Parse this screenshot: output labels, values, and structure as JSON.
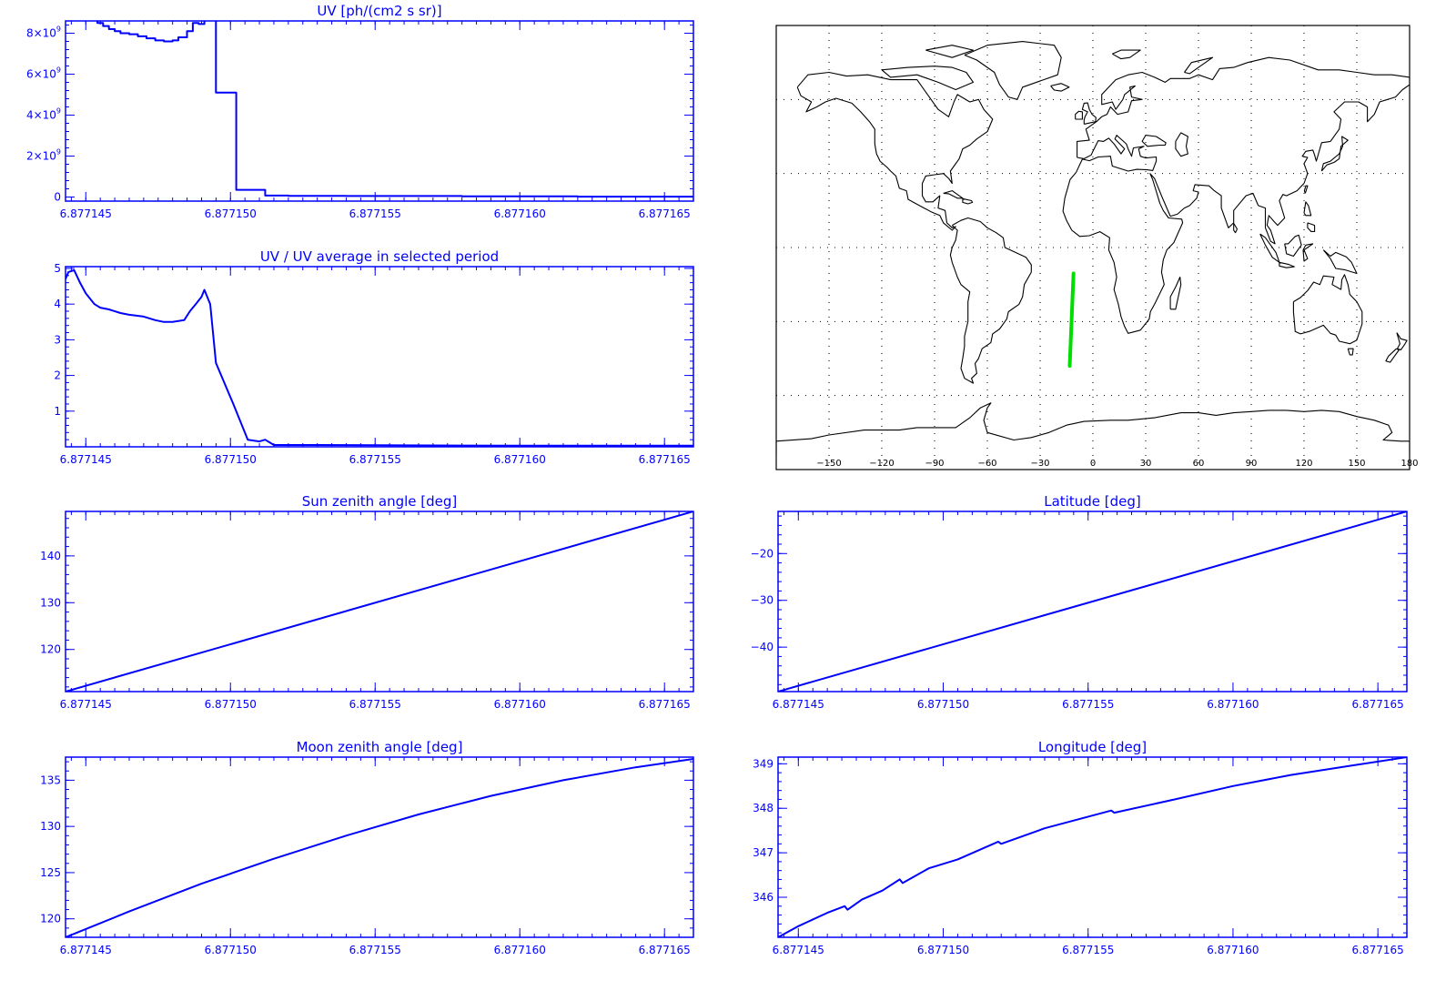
{
  "colors": {
    "series": "#0000ff",
    "axis": "#0000ff",
    "coast": "#000000",
    "track": "#00dd00",
    "grid": "#000000"
  },
  "chart_data": [
    {
      "id": "uv",
      "type": "line",
      "step": true,
      "title": "UV [ph/(cm2 s sr)]",
      "xlim": [
        6.8771443,
        6.877166
      ],
      "ylim": [
        -200000000.0,
        8600000000.0
      ],
      "xticks": [
        6.877145,
        6.87715,
        6.877155,
        6.87716,
        6.877165
      ],
      "xtick_labels": [
        "6.877145",
        "6.877150",
        "6.877155",
        "6.877160",
        "6.877165"
      ],
      "yticks": [
        0,
        2000000000.0,
        4000000000.0,
        6000000000.0,
        8000000000.0
      ],
      "ytick_labels": [
        {
          "base": "0",
          "exp": ""
        },
        {
          "base": "2×10",
          "exp": "9"
        },
        {
          "base": "4×10",
          "exp": "9"
        },
        {
          "base": "6×10",
          "exp": "9"
        },
        {
          "base": "8×10",
          "exp": "9"
        }
      ],
      "x": [
        6.8771443,
        6.8771454,
        6.8771456,
        6.8771458,
        6.877146,
        6.8771462,
        6.8771465,
        6.8771468,
        6.8771471,
        6.8771474,
        6.8771477,
        6.877148,
        6.8771482,
        6.8771485,
        6.8771487,
        6.8771489,
        6.8771491,
        6.8771493,
        6.8771495,
        6.8771502,
        6.8771512,
        6.877152,
        6.877154,
        6.877158,
        6.877162,
        6.877166
      ],
      "y": [
        8800000000.0,
        8500000000.0,
        8350000000.0,
        8200000000.0,
        8100000000.0,
        8000000000.0,
        7950000000.0,
        7850000000.0,
        7750000000.0,
        7650000000.0,
        7600000000.0,
        7650000000.0,
        7800000000.0,
        8100000000.0,
        8500000000.0,
        8450000000.0,
        8700000000.0,
        8900000000.0,
        5100000000.0,
        350000000.0,
        70000000.0,
        60000000.0,
        50000000.0,
        30000000.0,
        20000000.0,
        20000000.0
      ]
    },
    {
      "id": "uv-ratio",
      "type": "line",
      "title": "UV / UV average in selected period",
      "xlim": [
        6.8771443,
        6.877166
      ],
      "ylim": [
        0.0,
        5.05
      ],
      "xticks": [
        6.877145,
        6.87715,
        6.877155,
        6.87716,
        6.877165
      ],
      "xtick_labels": [
        "6.877145",
        "6.877150",
        "6.877155",
        "6.877160",
        "6.877165"
      ],
      "yticks": [
        1,
        2,
        3,
        4,
        5
      ],
      "ytick_labels": [
        "1",
        "2",
        "3",
        "4",
        "5"
      ],
      "x": [
        6.8771443,
        6.8771444,
        6.8771446,
        6.8771448,
        6.877145,
        6.8771453,
        6.8771455,
        6.8771458,
        6.8771462,
        6.8771465,
        6.877147,
        6.8771474,
        6.8771477,
        6.877148,
        6.8771484,
        6.8771486,
        6.8771488,
        6.877149,
        6.8771491,
        6.8771493,
        6.8771495,
        6.8771501,
        6.8771506,
        6.877151,
        6.8771512,
        6.8771515,
        6.877153,
        6.877156,
        6.87716,
        6.877166
      ],
      "y": [
        4.7,
        4.9,
        4.95,
        4.6,
        4.3,
        4.0,
        3.9,
        3.85,
        3.75,
        3.7,
        3.65,
        3.55,
        3.5,
        3.5,
        3.55,
        3.8,
        4.0,
        4.2,
        4.4,
        4.0,
        2.35,
        1.2,
        0.2,
        0.15,
        0.2,
        0.05,
        0.05,
        0.04,
        0.03,
        0.03
      ]
    },
    {
      "id": "sun-zenith",
      "type": "line",
      "title": "Sun zenith angle [deg]",
      "xlim": [
        6.8771443,
        6.877166
      ],
      "ylim": [
        111.0,
        149.5
      ],
      "xticks": [
        6.877145,
        6.87715,
        6.877155,
        6.87716,
        6.877165
      ],
      "xtick_labels": [
        "6.877145",
        "6.877150",
        "6.877155",
        "6.877160",
        "6.877165"
      ],
      "yticks": [
        120,
        130,
        140
      ],
      "ytick_labels": [
        "120",
        "130",
        "140"
      ],
      "x": [
        6.8771443,
        6.877166
      ],
      "y": [
        111.0,
        149.5
      ]
    },
    {
      "id": "moon-zenith",
      "type": "line",
      "title": "Moon zenith angle [deg]",
      "xlim": [
        6.8771443,
        6.877166
      ],
      "ylim": [
        118.0,
        137.5
      ],
      "xticks": [
        6.877145,
        6.87715,
        6.877155,
        6.87716,
        6.877165
      ],
      "xtick_labels": [
        "6.877145",
        "6.877150",
        "6.877155",
        "6.877160",
        "6.877165"
      ],
      "yticks": [
        120,
        125,
        130,
        135
      ],
      "ytick_labels": [
        "120",
        "125",
        "130",
        "135"
      ],
      "x": [
        6.8771443,
        6.8771465,
        6.877149,
        6.8771515,
        6.877154,
        6.8771565,
        6.877159,
        6.8771615,
        6.877164,
        6.877166
      ],
      "y": [
        118.0,
        120.8,
        123.8,
        126.5,
        129.0,
        131.3,
        133.3,
        135.0,
        136.4,
        137.3
      ]
    },
    {
      "id": "latitude",
      "type": "line",
      "title": "Latitude [deg]",
      "xlim": [
        6.8771443,
        6.877166
      ],
      "ylim": [
        -49.5,
        -11.0
      ],
      "xticks": [
        6.877145,
        6.87715,
        6.877155,
        6.87716,
        6.877165
      ],
      "xtick_labels": [
        "6.877145",
        "6.877150",
        "6.877155",
        "6.877160",
        "6.877165"
      ],
      "yticks": [
        -40,
        -30,
        -20
      ],
      "ytick_labels": [
        "−40",
        "−30",
        "−20"
      ],
      "x": [
        6.8771443,
        6.877166
      ],
      "y": [
        -49.5,
        -11.0
      ]
    },
    {
      "id": "longitude",
      "type": "line",
      "title": "Longitude [deg]",
      "xlim": [
        6.8771443,
        6.877166
      ],
      "ylim": [
        345.1,
        349.15
      ],
      "xticks": [
        6.877145,
        6.87715,
        6.877155,
        6.87716,
        6.877165
      ],
      "xtick_labels": [
        "6.877145",
        "6.877150",
        "6.877155",
        "6.877160",
        "6.877165"
      ],
      "yticks": [
        346,
        347,
        348,
        349
      ],
      "ytick_labels": [
        "346",
        "347",
        "348",
        "349"
      ],
      "x": [
        6.8771443,
        6.877145,
        6.877146,
        6.8771466,
        6.8771467,
        6.8771472,
        6.8771479,
        6.8771485,
        6.8771486,
        6.8771495,
        6.8771505,
        6.8771519,
        6.877152,
        6.8771535,
        6.8771558,
        6.8771559,
        6.877158,
        6.87716,
        6.877162,
        6.877164,
        6.877166
      ],
      "y": [
        345.1,
        345.35,
        345.65,
        345.8,
        345.72,
        345.95,
        346.15,
        346.4,
        346.32,
        346.65,
        346.85,
        347.25,
        347.2,
        347.55,
        347.95,
        347.9,
        348.2,
        348.5,
        348.75,
        348.95,
        349.15
      ]
    },
    {
      "id": "map",
      "type": "scatter",
      "title": "",
      "xlim": [
        -180,
        180
      ],
      "ylim": [
        -90,
        90
      ],
      "xticks": [
        -150,
        -120,
        -90,
        -60,
        -30,
        0,
        30,
        60,
        90,
        120,
        150,
        180
      ],
      "xtick_labels": [
        "−150",
        "−120",
        "−90",
        "−60",
        "−30",
        "0",
        "30",
        "60",
        "90",
        "120",
        "150",
        "180"
      ],
      "grid": true,
      "track": {
        "lon": [
          -13.2,
          -11.0
        ],
        "lat": [
          -48.0,
          -10.5
        ]
      }
    }
  ]
}
